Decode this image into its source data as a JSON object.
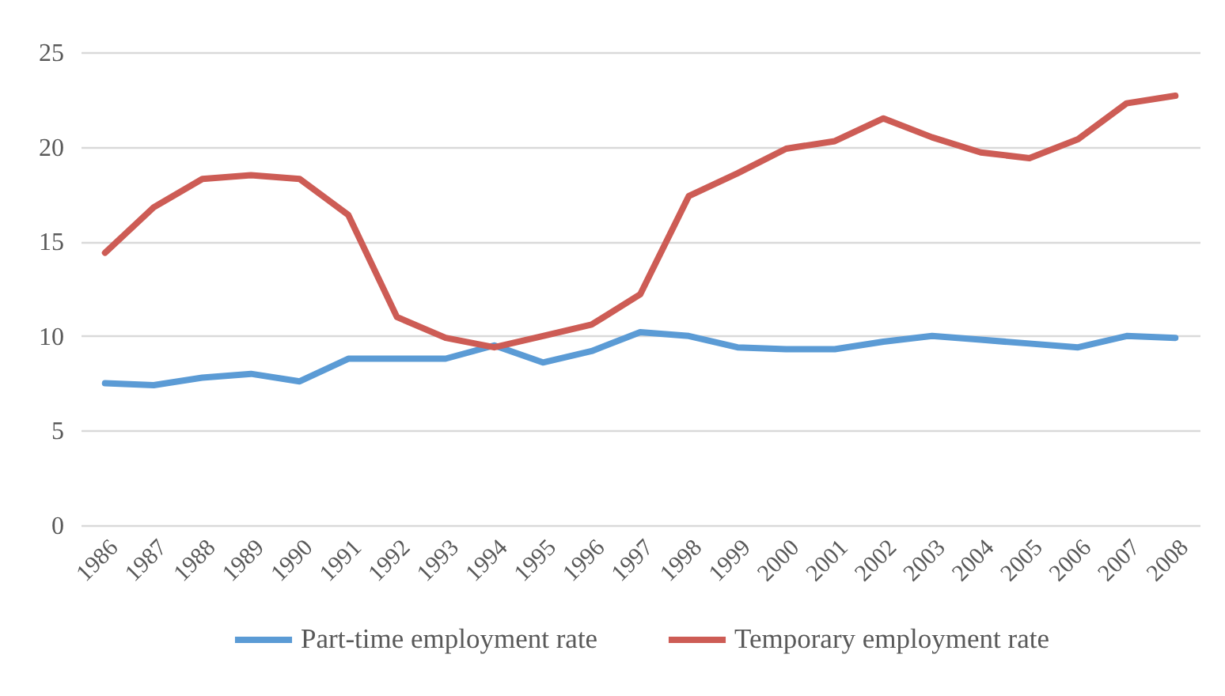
{
  "chart_data": {
    "type": "line",
    "categories": [
      "1986",
      "1987",
      "1988",
      "1989",
      "1990",
      "1991",
      "1992",
      "1993",
      "1994",
      "1995",
      "1996",
      "1997",
      "1998",
      "1999",
      "2000",
      "2001",
      "2002",
      "2003",
      "2004",
      "2005",
      "2006",
      "2007",
      "2008"
    ],
    "series": [
      {
        "name": "Part-time employment rate",
        "color": "#5b9bd5",
        "values": [
          7.5,
          7.4,
          7.8,
          8.0,
          7.6,
          8.8,
          8.8,
          8.8,
          9.5,
          8.6,
          9.2,
          10.2,
          10.0,
          9.4,
          9.3,
          9.3,
          9.7,
          10.0,
          9.8,
          9.6,
          9.4,
          10.0,
          9.9
        ]
      },
      {
        "name": "Temporary employment rate",
        "color": "#cd5c55",
        "values": [
          14.4,
          16.8,
          18.3,
          18.5,
          18.3,
          16.4,
          11.0,
          9.9,
          9.4,
          10.0,
          10.6,
          12.2,
          17.4,
          18.6,
          19.9,
          20.3,
          21.5,
          20.5,
          19.7,
          19.4,
          20.4,
          22.3,
          22.7
        ]
      }
    ],
    "ylim": [
      0,
      25
    ],
    "yticks": [
      0,
      5,
      10,
      15,
      20,
      25
    ],
    "grid": "y",
    "legend": "bottom",
    "marker": "none",
    "line_style": "solid"
  }
}
